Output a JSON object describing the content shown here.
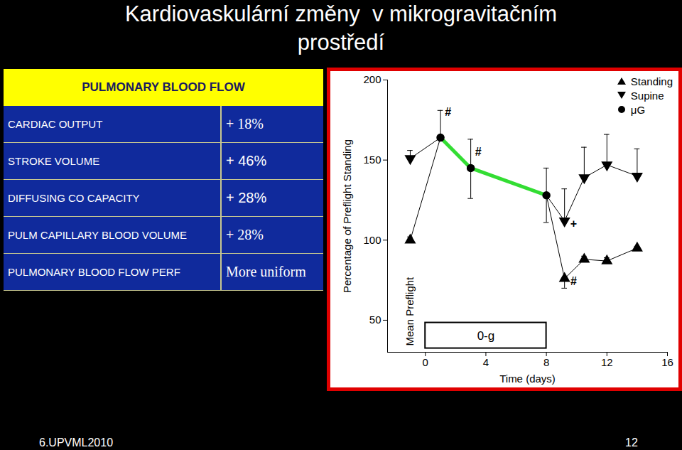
{
  "slide": {
    "title": [
      "Kardiovaskulární změny  v mikrogravitačním",
      "prostředí"
    ],
    "table": {
      "header": "PULMONARY BLOOD FLOW",
      "rows": [
        [
          "CARDIAC OUTPUT",
          "+ 18%"
        ],
        [
          "STROKE VOLUME",
          "+ 46%"
        ],
        [
          "DIFFUSING CO CAPACITY",
          "+ 28%"
        ],
        [
          "PULM CAPILLARY BLOOD VOLUME",
          "+ 28%"
        ],
        [
          "PULMONARY BLOOD FLOW PERF",
          "More uniform"
        ]
      ]
    },
    "footer": {
      "left": "6.UPVML2010",
      "right": "12"
    }
  },
  "chart_data": {
    "type": "line",
    "x_label": "Time (days)",
    "y_label": "Percentage of Preflight Standing",
    "xlim": [
      -2.5,
      16
    ],
    "xticks": [
      0,
      4,
      8,
      12,
      16
    ],
    "ylim": [
      30,
      200
    ],
    "yticks": [
      50,
      100,
      150,
      200
    ],
    "grid": false,
    "legend": "top-right",
    "series": [
      {
        "name": "Standing",
        "type": "line",
        "marker": "triangle-up",
        "color": "#000000",
        "x": [
          -1,
          9.2,
          10.5,
          12,
          14
        ],
        "values": [
          100,
          76,
          88,
          87,
          95
        ],
        "error_low": [
          null,
          70,
          null,
          null,
          null
        ],
        "error_high": [
          102,
          null,
          90,
          89,
          96
        ]
      },
      {
        "name": "Supine",
        "type": "line",
        "marker": "triangle-down",
        "color": "#000000",
        "x": [
          -1,
          9.2,
          10.5,
          12,
          14
        ],
        "values": [
          151,
          112,
          139,
          147,
          140
        ],
        "error_low": [
          null,
          null,
          null,
          null,
          null
        ],
        "error_high": [
          156,
          132,
          158,
          166,
          157
        ]
      },
      {
        "name": "μG",
        "type": "scatter",
        "marker": "circle",
        "color": "#000000",
        "x": [
          1,
          3,
          8
        ],
        "values": [
          164,
          145,
          128
        ],
        "error_low": [
          null,
          126,
          111
        ],
        "error_high": [
          181,
          163,
          145
        ]
      }
    ],
    "annotations": [
      {
        "type": "line",
        "color": "#33dd33",
        "x": [
          1,
          3,
          8
        ],
        "y": [
          164,
          145,
          128
        ]
      },
      {
        "type": "text",
        "text": "#",
        "x": 1.5,
        "y": 180
      },
      {
        "type": "text",
        "text": "#",
        "x": 3.5,
        "y": 155
      },
      {
        "type": "text",
        "text": "+",
        "x": 9.8,
        "y": 110
      },
      {
        "type": "text",
        "text": "#",
        "x": 9.8,
        "y": 74
      },
      {
        "type": "vertical_text",
        "text": "Mean Preflight",
        "x": -1,
        "y": 34
      },
      {
        "type": "box",
        "text": "0-g",
        "x": [
          0,
          8
        ]
      }
    ]
  }
}
